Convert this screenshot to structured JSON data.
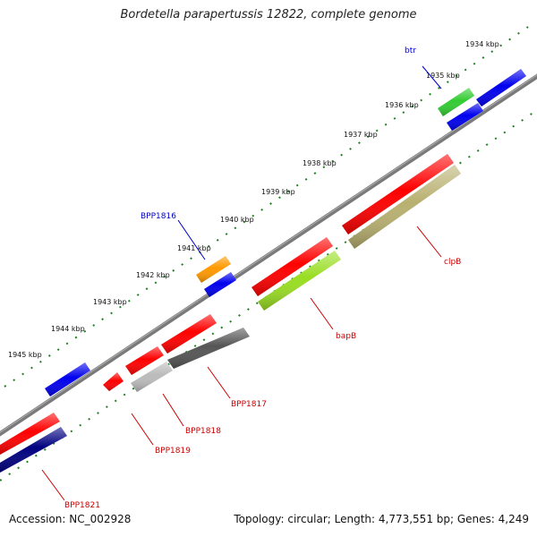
{
  "title": "Bordetella parapertussis 12822, complete genome",
  "footer": {
    "accession": "Accession: NC_002928",
    "summary": "Topology: circular; Length: 4,773,551 bp; Genes: 4,249"
  },
  "ruler_labels": [
    "1934 kbp",
    "1935 kbp",
    "1936 kbp",
    "1937 kbp",
    "1938 kbp",
    "1939 kbp",
    "1940 kbp",
    "1941 kbp",
    "1942 kbp",
    "1943 kbp",
    "1944 kbp",
    "1945 kbp"
  ],
  "gene_labels": {
    "btr": "btr",
    "bpp1816": "BPP1816",
    "clpb": "clpB",
    "bapb": "bapB",
    "bpp1817": "BPP1817",
    "bpp1818": "BPP1818",
    "bpp1819": "BPP1819",
    "bpp1821": "BPP1821"
  },
  "colors": {
    "label_blue": "#0000cc",
    "label_red": "#cc0000",
    "backbone": "#808080",
    "dots": "#208020",
    "red": "#ff0000",
    "blue": "#0000ee",
    "navy": "#000080",
    "green": "#33cc33",
    "orange": "#ff9900",
    "olive": "#b8b070",
    "lime": "#99dd22",
    "dark_gray": "#555555",
    "light_gray": "#bbbbbb"
  }
}
